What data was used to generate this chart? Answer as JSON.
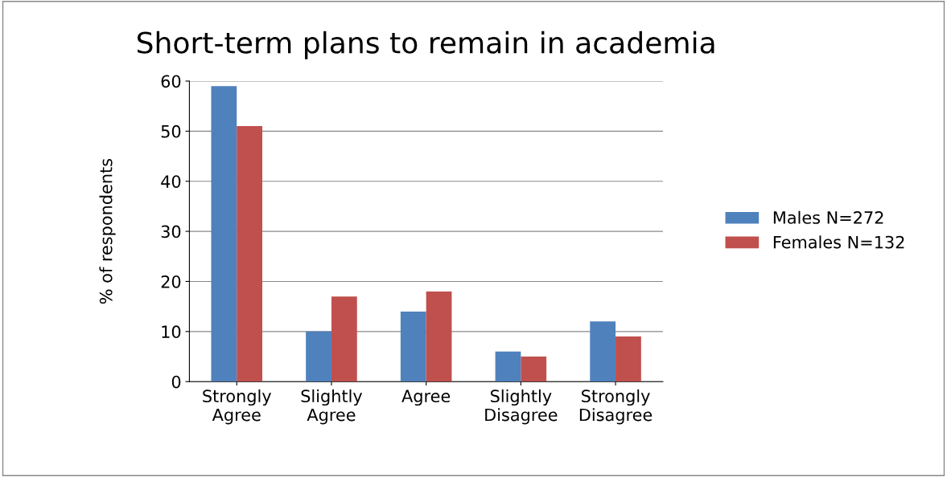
{
  "chart_data": {
    "type": "bar",
    "title": "Short-term plans to remain in academia",
    "ylabel": "% of respondents",
    "categories": [
      "Strongly\nAgree",
      "Slightly\nAgree",
      "Agree",
      "Slightly\nDisagree",
      "Strongly\nDisagree"
    ],
    "series": [
      {
        "name": "Males N=272",
        "color": "#4f81bd",
        "values": [
          59,
          10,
          14,
          6,
          12
        ]
      },
      {
        "name": "Females N=132",
        "color": "#c0504d",
        "values": [
          51,
          17,
          18,
          5,
          9
        ]
      }
    ],
    "ylim": [
      0,
      60
    ],
    "yticks": [
      0,
      10,
      20,
      30,
      40,
      50,
      60
    ],
    "grid": "y",
    "legend": "right"
  }
}
